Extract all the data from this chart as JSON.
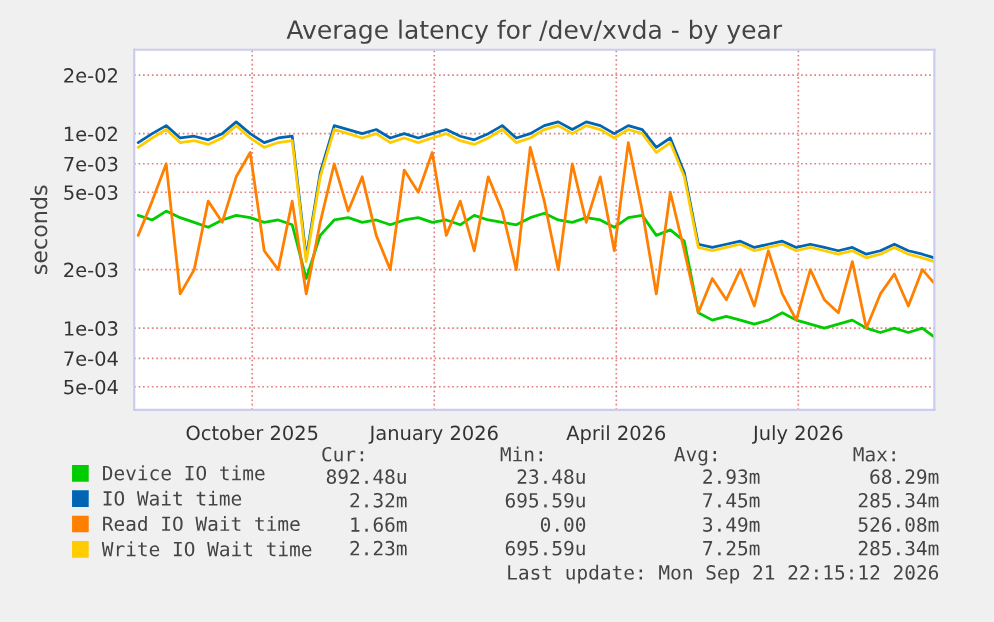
{
  "chart_data": {
    "type": "line",
    "title": "Average latency for /dev/xvda - by year",
    "ylabel": "seconds",
    "log": true,
    "grid": true,
    "legend": "bottom",
    "marker": "none",
    "line_style": "solid",
    "ylim": [
      0.00038,
      0.027
    ],
    "yticks": [
      {
        "value": 0.0005,
        "label": "5e-04"
      },
      {
        "value": 0.0007,
        "label": "7e-04"
      },
      {
        "value": 0.001,
        "label": "1e-03"
      },
      {
        "value": 0.002,
        "label": "2e-03"
      },
      {
        "value": 0.005,
        "label": "5e-03"
      },
      {
        "value": 0.007,
        "label": "7e-03"
      },
      {
        "value": 0.01,
        "label": "1e-02"
      },
      {
        "value": 0.02,
        "label": "2e-02"
      }
    ],
    "xlim": [
      "2025-08-17",
      "2026-09-21"
    ],
    "xticks": [
      {
        "value": "2025-10-15",
        "label": "October 2025"
      },
      {
        "value": "2026-01-14",
        "label": "January 2026"
      },
      {
        "value": "2026-04-15",
        "label": "April 2026"
      },
      {
        "value": "2026-07-15",
        "label": "July 2026"
      }
    ],
    "x": [
      "2025-08-19",
      "2025-08-26",
      "2025-09-02",
      "2025-09-09",
      "2025-09-16",
      "2025-09-23",
      "2025-09-30",
      "2025-10-07",
      "2025-10-14",
      "2025-10-21",
      "2025-10-28",
      "2025-11-04",
      "2025-11-11",
      "2025-11-18",
      "2025-11-25",
      "2025-12-02",
      "2025-12-09",
      "2025-12-16",
      "2025-12-23",
      "2025-12-30",
      "2026-01-06",
      "2026-01-13",
      "2026-01-20",
      "2026-01-27",
      "2026-02-03",
      "2026-02-10",
      "2026-02-17",
      "2026-02-24",
      "2026-03-03",
      "2026-03-10",
      "2026-03-17",
      "2026-03-24",
      "2026-03-31",
      "2026-04-07",
      "2026-04-14",
      "2026-04-21",
      "2026-04-28",
      "2026-05-05",
      "2026-05-12",
      "2026-05-19",
      "2026-05-26",
      "2026-06-02",
      "2026-06-09",
      "2026-06-16",
      "2026-06-23",
      "2026-06-30",
      "2026-07-07",
      "2026-07-14",
      "2026-07-21",
      "2026-07-28",
      "2026-08-04",
      "2026-08-11",
      "2026-08-18",
      "2026-08-25",
      "2026-09-01",
      "2026-09-08",
      "2026-09-15",
      "2026-09-21"
    ],
    "series": [
      {
        "name": "Device IO time",
        "color": "#00cc00",
        "values": [
          0.0038,
          0.0036,
          0.004,
          0.0037,
          0.0035,
          0.0033,
          0.0036,
          0.0038,
          0.0037,
          0.0035,
          0.0036,
          0.0034,
          0.0018,
          0.003,
          0.0036,
          0.0037,
          0.0035,
          0.0036,
          0.0034,
          0.0036,
          0.0037,
          0.0035,
          0.0036,
          0.0034,
          0.0038,
          0.0036,
          0.0035,
          0.0034,
          0.0037,
          0.0039,
          0.0036,
          0.0035,
          0.0037,
          0.0036,
          0.0033,
          0.0037,
          0.0038,
          0.003,
          0.0032,
          0.0028,
          0.0012,
          0.0011,
          0.00115,
          0.0011,
          0.00105,
          0.0011,
          0.0012,
          0.0011,
          0.00105,
          0.001,
          0.00105,
          0.0011,
          0.001,
          0.00095,
          0.001,
          0.00095,
          0.001,
          0.0009
        ]
      },
      {
        "name": "IO Wait time",
        "color": "#0066b3",
        "values": [
          0.009,
          0.01,
          0.011,
          0.0095,
          0.0097,
          0.0093,
          0.01,
          0.0115,
          0.01,
          0.009,
          0.0095,
          0.0097,
          0.0023,
          0.0063,
          0.011,
          0.0105,
          0.01,
          0.0105,
          0.0095,
          0.01,
          0.0095,
          0.01,
          0.0105,
          0.0097,
          0.0093,
          0.01,
          0.011,
          0.0095,
          0.01,
          0.011,
          0.0115,
          0.0105,
          0.0115,
          0.011,
          0.01,
          0.011,
          0.0105,
          0.0085,
          0.0095,
          0.0063,
          0.0027,
          0.0026,
          0.0027,
          0.0028,
          0.0026,
          0.0027,
          0.0028,
          0.0026,
          0.0027,
          0.0026,
          0.0025,
          0.0026,
          0.0024,
          0.0025,
          0.0027,
          0.0025,
          0.0024,
          0.0023
        ]
      },
      {
        "name": "Read IO Wait time",
        "color": "#ff8000",
        "values": [
          0.003,
          0.0045,
          0.007,
          0.0015,
          0.002,
          0.0045,
          0.0035,
          0.006,
          0.008,
          0.0025,
          0.002,
          0.0045,
          0.0015,
          0.0035,
          0.007,
          0.004,
          0.006,
          0.003,
          0.002,
          0.0065,
          0.005,
          0.008,
          0.003,
          0.0045,
          0.0025,
          0.006,
          0.004,
          0.002,
          0.0085,
          0.0045,
          0.002,
          0.007,
          0.0035,
          0.006,
          0.0025,
          0.009,
          0.004,
          0.0015,
          0.005,
          0.0025,
          0.0012,
          0.0018,
          0.0014,
          0.002,
          0.0013,
          0.0025,
          0.0015,
          0.0011,
          0.002,
          0.0014,
          0.0012,
          0.0022,
          0.001,
          0.0015,
          0.0019,
          0.0013,
          0.002,
          0.0017
        ]
      },
      {
        "name": "Write IO Wait time",
        "color": "#ffcc00",
        "values": [
          0.0085,
          0.0095,
          0.0105,
          0.009,
          0.0092,
          0.0088,
          0.0095,
          0.011,
          0.0095,
          0.0085,
          0.009,
          0.0092,
          0.0022,
          0.006,
          0.0105,
          0.01,
          0.0095,
          0.01,
          0.009,
          0.0095,
          0.009,
          0.0095,
          0.01,
          0.0092,
          0.0088,
          0.0095,
          0.0105,
          0.009,
          0.0095,
          0.0105,
          0.011,
          0.01,
          0.011,
          0.0105,
          0.0095,
          0.0105,
          0.01,
          0.008,
          0.009,
          0.006,
          0.0026,
          0.0025,
          0.0026,
          0.0027,
          0.0025,
          0.0026,
          0.0027,
          0.0025,
          0.0026,
          0.0025,
          0.0024,
          0.0025,
          0.0023,
          0.0024,
          0.0026,
          0.0024,
          0.0023,
          0.0022
        ]
      }
    ],
    "annotations": [
      "Cur:",
      "Min:",
      "Avg:",
      "Max:",
      "892.48u",
      "23.48u",
      "2.93m",
      "68.29m",
      "2.32m",
      "695.59u",
      "7.45m",
      "285.34m",
      "1.66m",
      "0.00",
      "3.49m",
      "526.08m",
      "2.23m",
      "695.59u",
      "7.25m",
      "285.34m",
      "Last update: Mon Sep 21 22:15:12 2026"
    ]
  }
}
